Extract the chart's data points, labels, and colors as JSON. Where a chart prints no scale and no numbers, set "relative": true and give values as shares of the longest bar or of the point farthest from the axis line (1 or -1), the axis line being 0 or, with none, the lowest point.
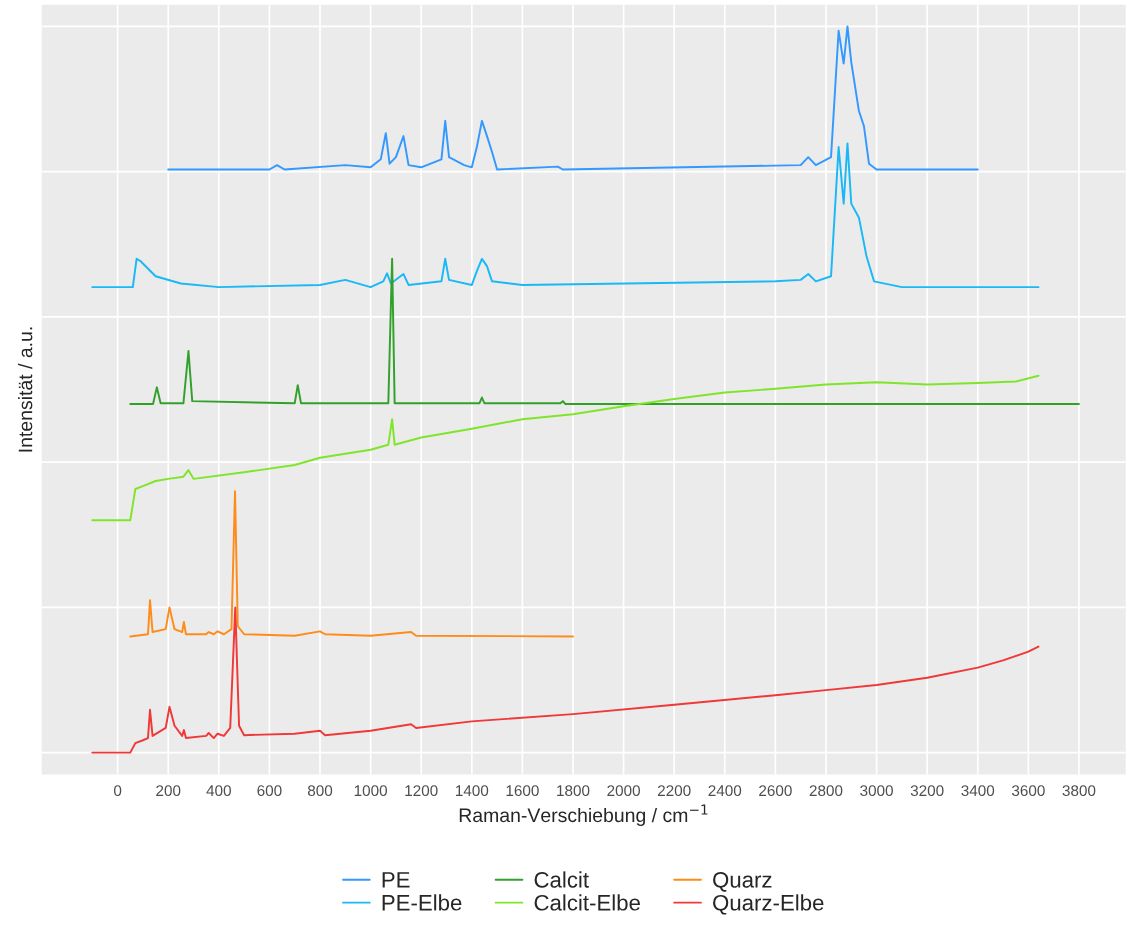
{
  "chart_data": {
    "type": "line",
    "relative": true,
    "xlabel": "Raman-Verschiebung / cm$^{−1}$",
    "ylabel": "Intensität / a.u.",
    "xlim": [
      -300,
      3985
    ],
    "xticks": [
      0,
      200,
      400,
      600,
      800,
      1000,
      1200,
      1400,
      1600,
      1800,
      2000,
      2200,
      2400,
      2600,
      2800,
      3000,
      3200,
      3400,
      3600,
      3800
    ],
    "grid": true,
    "legend": "bottom",
    "tick_labels": "x",
    "series": [
      {
        "name": "PE",
        "color": "#3399ff",
        "x": [
          200,
          600,
          630,
          660,
          900,
          1000,
          1040,
          1060,
          1075,
          1100,
          1130,
          1150,
          1200,
          1280,
          1295,
          1310,
          1370,
          1400,
          1420,
          1440,
          1460,
          1480,
          1500,
          1740,
          1760,
          2700,
          2730,
          2760,
          2820,
          2850,
          2870,
          2885,
          2900,
          2930,
          2950,
          2970,
          3000,
          3400
        ],
        "values": [
          0.803,
          0.803,
          0.809,
          0.803,
          0.809,
          0.806,
          0.817,
          0.853,
          0.811,
          0.82,
          0.849,
          0.809,
          0.806,
          0.817,
          0.87,
          0.82,
          0.809,
          0.806,
          0.834,
          0.87,
          0.849,
          0.827,
          0.803,
          0.807,
          0.803,
          0.809,
          0.82,
          0.809,
          0.82,
          0.994,
          0.949,
          1.0,
          0.951,
          0.884,
          0.863,
          0.811,
          0.803,
          0.803
        ]
      },
      {
        "name": "PE-Elbe",
        "color": "#1ab8f5",
        "x": [
          -100,
          60,
          75,
          90,
          150,
          250,
          400,
          800,
          900,
          1000,
          1050,
          1065,
          1080,
          1130,
          1150,
          1280,
          1295,
          1310,
          1400,
          1420,
          1440,
          1460,
          1480,
          1600,
          2600,
          2700,
          2730,
          2760,
          2820,
          2850,
          2870,
          2885,
          2900,
          2930,
          2960,
          2990,
          3100,
          3640
        ],
        "values": [
          0.641,
          0.641,
          0.68,
          0.677,
          0.656,
          0.646,
          0.641,
          0.644,
          0.651,
          0.641,
          0.649,
          0.66,
          0.646,
          0.659,
          0.644,
          0.649,
          0.68,
          0.651,
          0.644,
          0.663,
          0.68,
          0.67,
          0.649,
          0.644,
          0.649,
          0.651,
          0.659,
          0.649,
          0.656,
          0.834,
          0.756,
          0.839,
          0.756,
          0.737,
          0.684,
          0.649,
          0.641,
          0.641
        ]
      },
      {
        "name": "Calcit",
        "color": "#33a02c",
        "x": [
          50,
          140,
          155,
          170,
          260,
          280,
          295,
          700,
          712,
          725,
          1070,
          1085,
          1095,
          1430,
          1440,
          1450,
          1750,
          1760,
          1770,
          3800
        ],
        "values": [
          0.48,
          0.48,
          0.503,
          0.481,
          0.481,
          0.553,
          0.484,
          0.481,
          0.506,
          0.481,
          0.481,
          0.68,
          0.481,
          0.481,
          0.489,
          0.481,
          0.481,
          0.484,
          0.48,
          0.48
        ]
      },
      {
        "name": "Calcit-Elbe",
        "color": "#7fe52b",
        "x": [
          -100,
          50,
          70,
          100,
          150,
          200,
          260,
          280,
          300,
          500,
          700,
          800,
          1000,
          1070,
          1085,
          1095,
          1200,
          1400,
          1600,
          1800,
          2000,
          2200,
          2400,
          2600,
          2800,
          3000,
          3200,
          3400,
          3550,
          3640
        ],
        "values": [
          0.32,
          0.32,
          0.363,
          0.367,
          0.374,
          0.377,
          0.38,
          0.389,
          0.377,
          0.386,
          0.396,
          0.406,
          0.417,
          0.424,
          0.459,
          0.424,
          0.434,
          0.446,
          0.459,
          0.466,
          0.477,
          0.487,
          0.496,
          0.501,
          0.507,
          0.51,
          0.507,
          0.509,
          0.511,
          0.519
        ]
      },
      {
        "name": "Quarz",
        "color": "#ff8c1a",
        "x": [
          50,
          120,
          128,
          138,
          190,
          205,
          225,
          255,
          262,
          270,
          350,
          360,
          380,
          395,
          420,
          450,
          464,
          475,
          500,
          700,
          800,
          820,
          1000,
          1160,
          1180,
          1800
        ],
        "values": [
          0.16,
          0.163,
          0.21,
          0.166,
          0.17,
          0.2,
          0.17,
          0.166,
          0.18,
          0.163,
          0.163,
          0.166,
          0.163,
          0.167,
          0.163,
          0.17,
          0.36,
          0.174,
          0.163,
          0.161,
          0.167,
          0.163,
          0.161,
          0.166,
          0.161,
          0.16
        ]
      },
      {
        "name": "Quarz-Elbe",
        "color": "#f03838",
        "x": [
          -100,
          50,
          70,
          100,
          120,
          128,
          138,
          190,
          205,
          225,
          255,
          262,
          270,
          350,
          360,
          380,
          395,
          420,
          445,
          465,
          480,
          500,
          700,
          800,
          820,
          1000,
          1160,
          1180,
          1400,
          1800,
          2200,
          2600,
          2800,
          3000,
          3200,
          3400,
          3500,
          3600,
          3640
        ],
        "values": [
          0,
          0,
          0.013,
          0.017,
          0.02,
          0.059,
          0.023,
          0.034,
          0.063,
          0.037,
          0.023,
          0.031,
          0.02,
          0.023,
          0.027,
          0.02,
          0.026,
          0.023,
          0.034,
          0.2,
          0.037,
          0.024,
          0.026,
          0.03,
          0.024,
          0.03,
          0.039,
          0.034,
          0.043,
          0.053,
          0.066,
          0.079,
          0.086,
          0.093,
          0.103,
          0.117,
          0.127,
          0.139,
          0.146
        ]
      }
    ]
  }
}
